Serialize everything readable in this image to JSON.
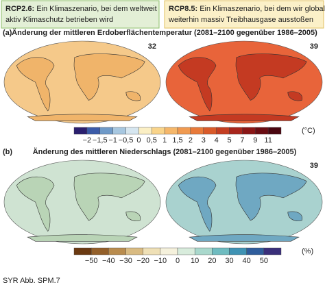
{
  "scenarios": [
    {
      "label": "RCP2.6:",
      "lines": [
        "Ein Klimaszenario, bei dem weltweit",
        "aktiv Klimaschutz betrieben wird"
      ],
      "bg": "#e3efd6",
      "border": "#8cbf6a"
    },
    {
      "label": "RCP8.5:",
      "lines": [
        "Ein Klimaszenario, bei dem wir global",
        "weiterhin massiv Treibhausgase ausstoßen"
      ],
      "bg": "#fbf0c8",
      "border": "#e0c060"
    }
  ],
  "panels": [
    {
      "letter": "(a)",
      "title": "Änderung der mittleren Erdoberflächentemperatur (2081–2100 gegenüber 1986–2005)",
      "maps": [
        {
          "count": "32",
          "fill": "#f5c98a",
          "land": "#f0b46a"
        },
        {
          "count": "39",
          "fill": "#e8643a",
          "land": "#c43a22"
        }
      ],
      "ticks": [
        "−2",
        "−1,5",
        "−1",
        "−0,5",
        "0",
        "0,5",
        "1",
        "1,5",
        "2",
        "3",
        "4",
        "5",
        "7",
        "9",
        "11"
      ],
      "unit": "(°C)",
      "colors": [
        "#2a1f6e",
        "#3b5ba8",
        "#6f9ac8",
        "#a7c7e0",
        "#d6e6f0",
        "#fbefc4",
        "#f9d48a",
        "#f5b76a",
        "#f09a50",
        "#e87a3a",
        "#d95a2a",
        "#c43e22",
        "#a8261c",
        "#8a1616",
        "#6a0c12",
        "#4a0610"
      ]
    },
    {
      "letter": "(b)",
      "title": "Änderung des mittleren Niederschlags (2081–2100 gegenüber 1986–2005)",
      "maps": [
        {
          "count": "",
          "fill": "#cfe3d2",
          "land": "#b9d4b6"
        },
        {
          "count": "39",
          "fill": "#a9d2cf",
          "land": "#6fa8c2"
        }
      ],
      "ticks": [
        "−50",
        "−40",
        "−30",
        "−20",
        "−10",
        "0",
        "10",
        "20",
        "30",
        "40",
        "50"
      ],
      "unit": "(%)",
      "colors": [
        "#6b3a12",
        "#94602a",
        "#b98c4e",
        "#d9bb82",
        "#efe0b6",
        "#f5f1dc",
        "#d8ecdc",
        "#a9d8cc",
        "#6fbcc0",
        "#3f93b4",
        "#2f5d9c",
        "#3a2f7a"
      ]
    }
  ],
  "footer": "SYR Abb. SPM.7"
}
